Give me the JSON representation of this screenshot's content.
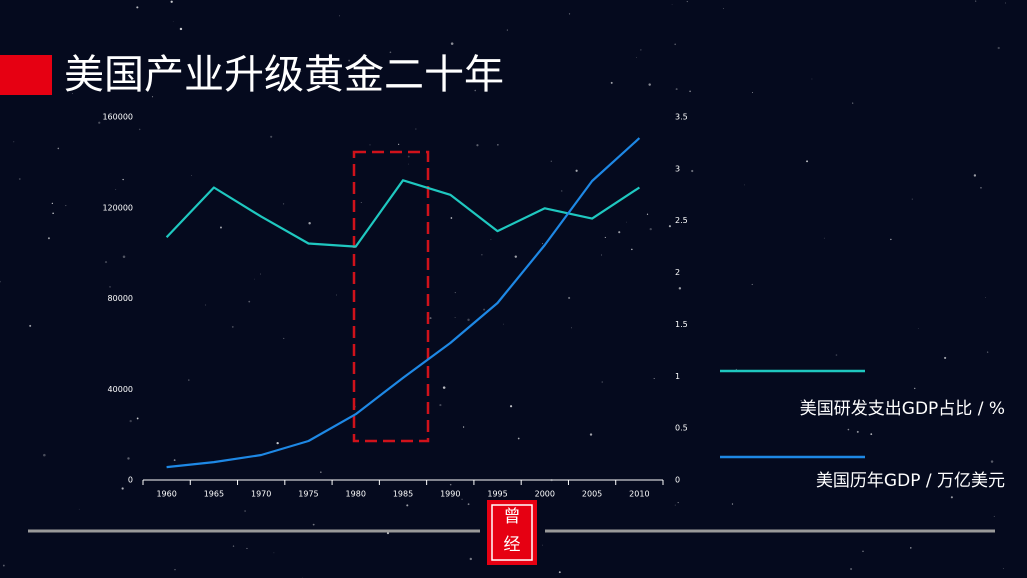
{
  "chart_data": {
    "type": "line",
    "title": "美国产业升级黄金二十年",
    "categories": [
      "1960",
      "1965",
      "1970",
      "1975",
      "1980",
      "1985",
      "1990",
      "1995",
      "2000",
      "2005",
      "2010"
    ],
    "series": [
      {
        "name": "美国研发支出GDP占比 / %",
        "color": "#1fc8c0",
        "axis": "y2",
        "values": [
          2.34,
          2.82,
          2.54,
          2.28,
          2.25,
          2.89,
          2.75,
          2.4,
          2.62,
          2.52,
          2.82
        ]
      },
      {
        "name": "美国历年GDP / 万亿美元",
        "color": "#1e88e5",
        "axis": "y",
        "values": [
          5700,
          7900,
          11000,
          17200,
          29000,
          45000,
          60400,
          78000,
          103600,
          131800,
          150700
        ]
      }
    ],
    "ylim": [
      0,
      160000
    ],
    "yticks": [
      0,
      40000,
      80000,
      120000,
      160000
    ],
    "y2lim": [
      0,
      3.5
    ],
    "y2ticks": [
      0,
      0.5,
      1,
      1.5,
      2,
      2.5,
      3,
      3.5
    ],
    "grid": false,
    "logo": [
      "曾",
      "经"
    ]
  }
}
